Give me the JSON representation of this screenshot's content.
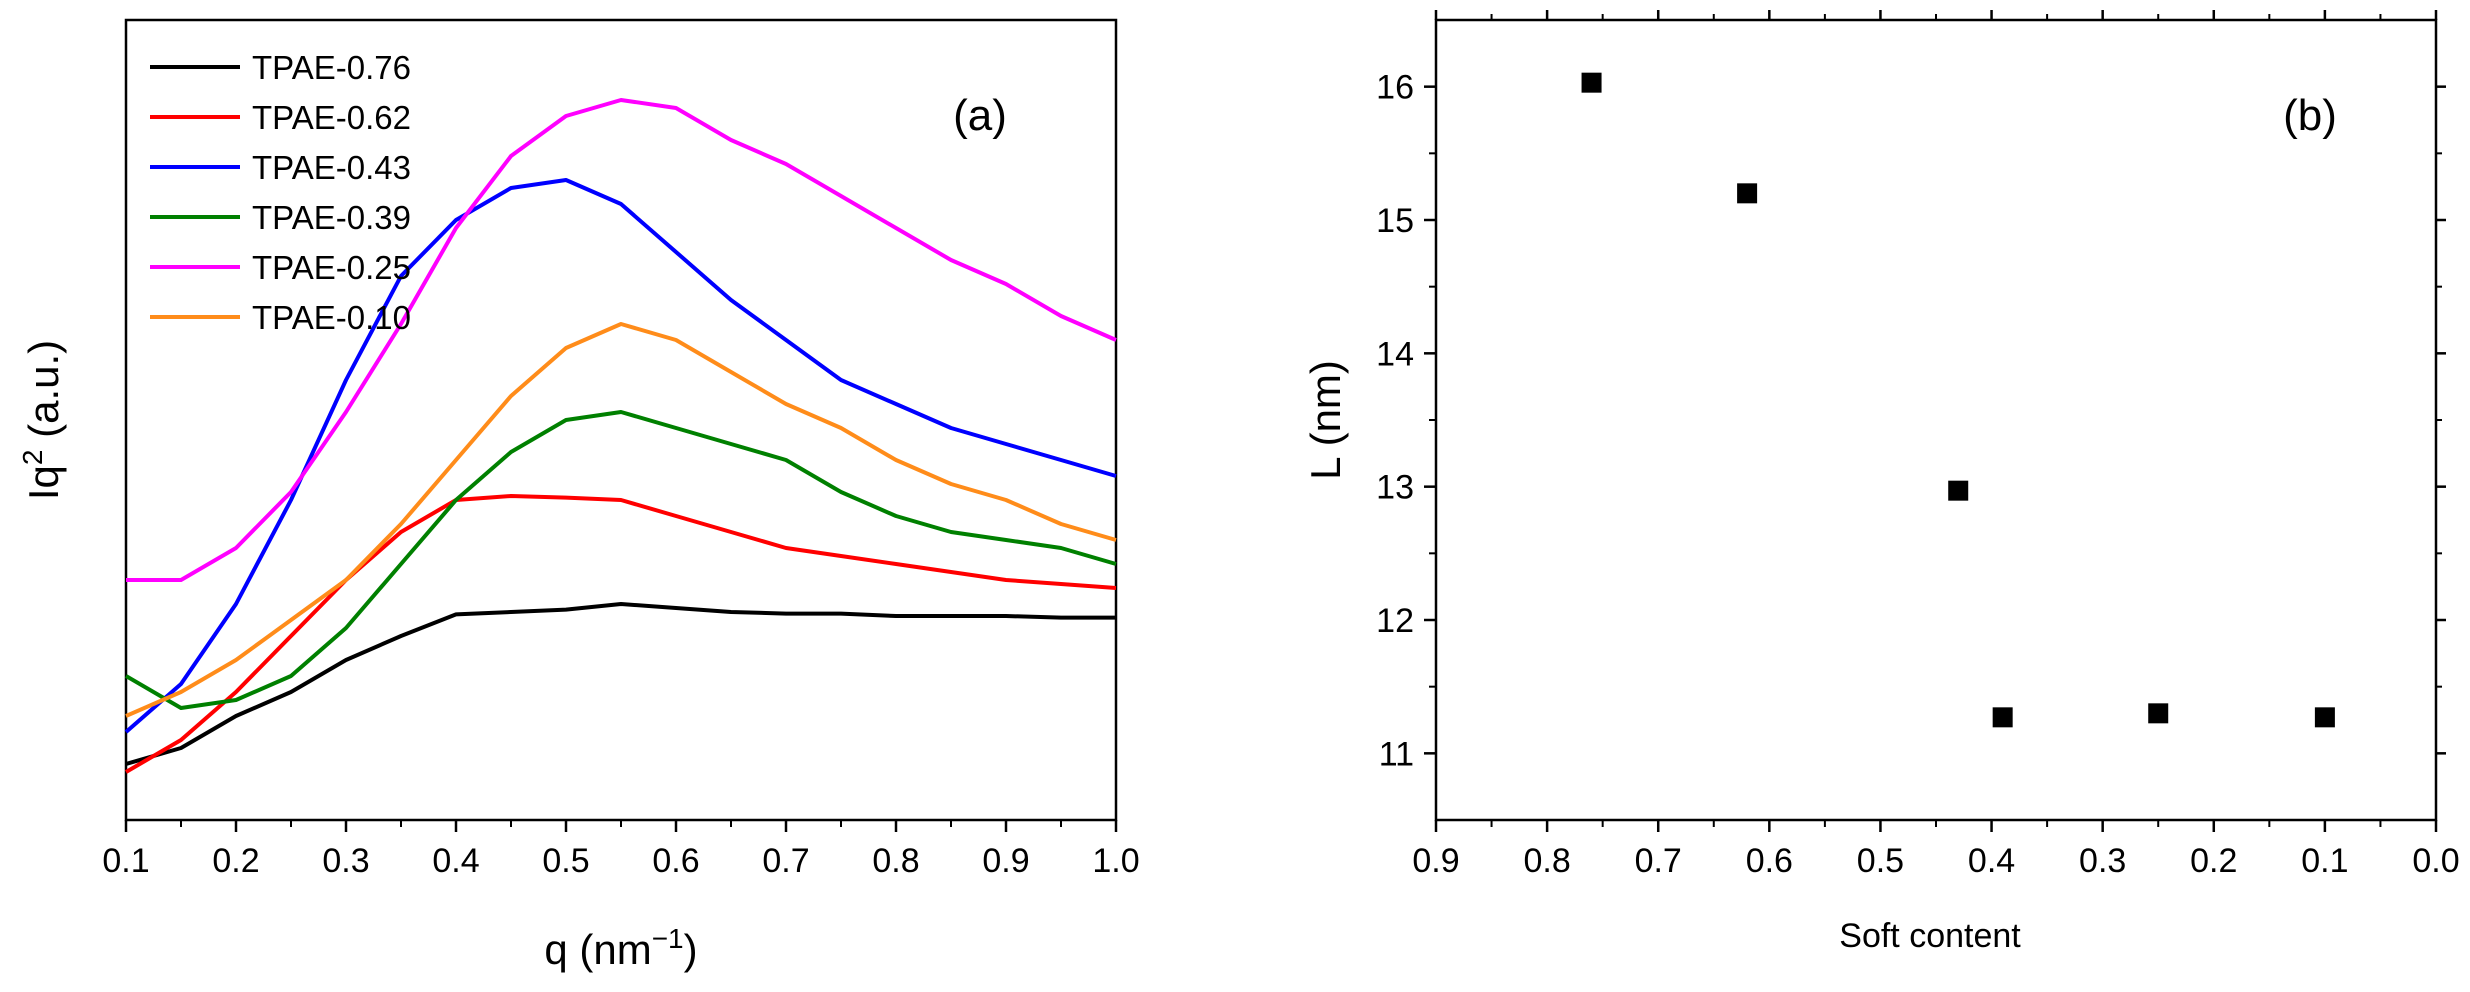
{
  "chart_data": [
    {
      "panel_label": "(a)",
      "type": "line",
      "xlabel": "q (nm",
      "xlabel_sup": "−1",
      "xlabel_close": ")",
      "ylabel": "Iq",
      "ylabel_sup": "2",
      "ylabel_rest": " (a.u.)",
      "xlim": [
        0.1,
        1.0
      ],
      "ylim": [
        0,
        1
      ],
      "xticks": [
        "0.1",
        "0.2",
        "0.3",
        "0.4",
        "0.5",
        "0.6",
        "0.7",
        "0.8",
        "0.9",
        "1.0"
      ],
      "yticks_shown": false,
      "legend_position": "top-left",
      "series": [
        {
          "name": "TPAE-0.76",
          "color": "#000000",
          "x": [
            0.1,
            0.15,
            0.2,
            0.25,
            0.3,
            0.35,
            0.4,
            0.45,
            0.5,
            0.55,
            0.6,
            0.65,
            0.7,
            0.75,
            0.8,
            0.85,
            0.9,
            0.95,
            1.0
          ],
          "y": [
            0.07,
            0.09,
            0.13,
            0.16,
            0.2,
            0.23,
            0.257,
            0.26,
            0.263,
            0.27,
            0.265,
            0.26,
            0.258,
            0.258,
            0.255,
            0.255,
            0.255,
            0.253,
            0.253
          ]
        },
        {
          "name": "TPAE-0.62",
          "color": "#ff0000",
          "x": [
            0.1,
            0.15,
            0.2,
            0.25,
            0.3,
            0.35,
            0.4,
            0.45,
            0.5,
            0.55,
            0.6,
            0.65,
            0.7,
            0.75,
            0.8,
            0.85,
            0.9,
            0.95,
            1.0
          ],
          "y": [
            0.06,
            0.1,
            0.16,
            0.23,
            0.3,
            0.36,
            0.4,
            0.405,
            0.403,
            0.4,
            0.38,
            0.36,
            0.34,
            0.33,
            0.32,
            0.31,
            0.3,
            0.295,
            0.29
          ]
        },
        {
          "name": "TPAE-0.43",
          "color": "#0000ff",
          "x": [
            0.1,
            0.15,
            0.2,
            0.25,
            0.3,
            0.35,
            0.4,
            0.45,
            0.5,
            0.55,
            0.6,
            0.65,
            0.7,
            0.75,
            0.8,
            0.85,
            0.9,
            0.95,
            1.0
          ],
          "y": [
            0.11,
            0.17,
            0.27,
            0.4,
            0.55,
            0.68,
            0.75,
            0.79,
            0.8,
            0.77,
            0.71,
            0.65,
            0.6,
            0.55,
            0.52,
            0.49,
            0.47,
            0.45,
            0.43
          ]
        },
        {
          "name": "TPAE-0.39",
          "color": "#008000",
          "x": [
            0.1,
            0.15,
            0.2,
            0.25,
            0.3,
            0.35,
            0.4,
            0.45,
            0.5,
            0.55,
            0.6,
            0.65,
            0.7,
            0.75,
            0.8,
            0.85,
            0.9,
            0.95,
            1.0
          ],
          "y": [
            0.18,
            0.14,
            0.15,
            0.18,
            0.24,
            0.32,
            0.4,
            0.46,
            0.5,
            0.51,
            0.49,
            0.47,
            0.45,
            0.41,
            0.38,
            0.36,
            0.35,
            0.34,
            0.32
          ]
        },
        {
          "name": "TPAE-0.25",
          "color": "#ff00ff",
          "x": [
            0.1,
            0.15,
            0.2,
            0.25,
            0.3,
            0.35,
            0.4,
            0.45,
            0.5,
            0.55,
            0.6,
            0.65,
            0.7,
            0.75,
            0.8,
            0.85,
            0.9,
            0.95,
            1.0
          ],
          "y": [
            0.3,
            0.3,
            0.34,
            0.41,
            0.51,
            0.62,
            0.74,
            0.83,
            0.88,
            0.9,
            0.89,
            0.85,
            0.82,
            0.78,
            0.74,
            0.7,
            0.67,
            0.63,
            0.6
          ]
        },
        {
          "name": "TPAE-0.10",
          "color": "#ff8c1a",
          "x": [
            0.1,
            0.15,
            0.2,
            0.25,
            0.3,
            0.35,
            0.4,
            0.45,
            0.5,
            0.55,
            0.6,
            0.65,
            0.7,
            0.75,
            0.8,
            0.85,
            0.9,
            0.95,
            1.0
          ],
          "y": [
            0.13,
            0.16,
            0.2,
            0.25,
            0.3,
            0.37,
            0.45,
            0.53,
            0.59,
            0.62,
            0.6,
            0.56,
            0.52,
            0.49,
            0.45,
            0.42,
            0.4,
            0.37,
            0.35
          ]
        }
      ]
    },
    {
      "panel_label": "(b)",
      "type": "scatter",
      "xlabel": "Soft content",
      "ylabel": "L (nm)",
      "xlim": [
        0.9,
        0.0
      ],
      "ylim": [
        10.5,
        16.5
      ],
      "xticks": [
        "0.9",
        "0.8",
        "0.7",
        "0.6",
        "0.5",
        "0.4",
        "0.3",
        "0.2",
        "0.1",
        "0.0"
      ],
      "yticks": [
        "11",
        "12",
        "13",
        "14",
        "15",
        "16"
      ],
      "marker": "square",
      "color": "#000000",
      "points": [
        {
          "x": 0.76,
          "y": 16.03
        },
        {
          "x": 0.62,
          "y": 15.2
        },
        {
          "x": 0.43,
          "y": 12.97
        },
        {
          "x": 0.39,
          "y": 11.27
        },
        {
          "x": 0.25,
          "y": 11.3
        },
        {
          "x": 0.1,
          "y": 11.27
        }
      ]
    }
  ]
}
